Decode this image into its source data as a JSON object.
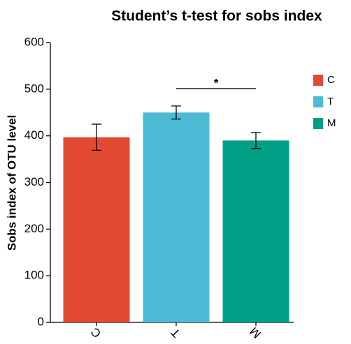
{
  "chart_data": {
    "type": "bar",
    "title": "Student’s t-test for sobs index",
    "y_label": "Sobs index of OTU level",
    "categories": [
      "C",
      "T",
      "M"
    ],
    "values": [
      397,
      450,
      390
    ],
    "errors": [
      28,
      14,
      17
    ],
    "colors": [
      "#e34a33",
      "#4dbbd5",
      "#00a087"
    ],
    "ylim": [
      0,
      600
    ],
    "yticks": [
      0,
      100,
      200,
      300,
      400,
      500,
      600
    ],
    "legend": "right",
    "significance": [
      {
        "label": "*",
        "between": [
          "T",
          "M"
        ]
      }
    ]
  }
}
